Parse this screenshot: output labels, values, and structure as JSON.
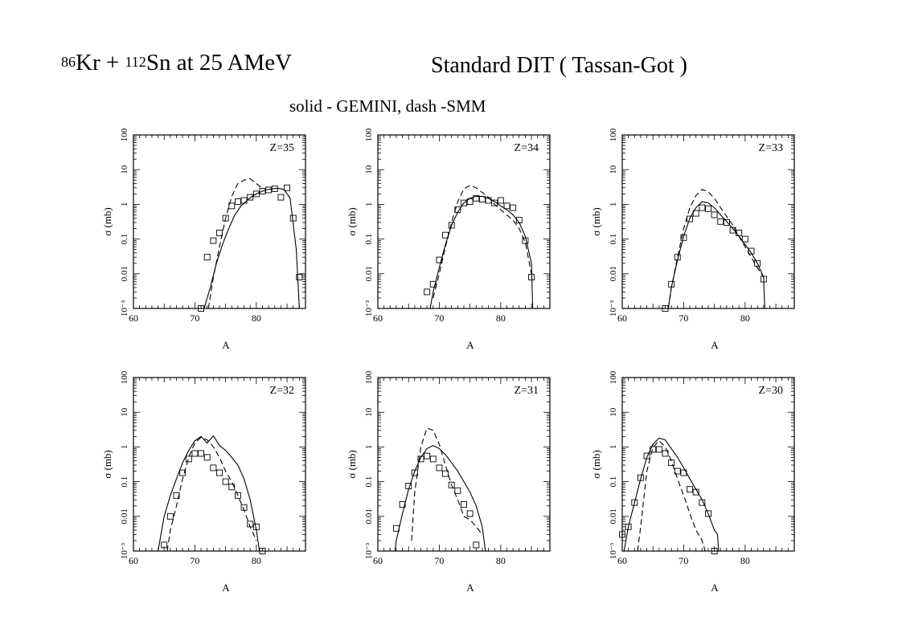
{
  "header": {
    "reaction": {
      "mass1": "86",
      "el1": "Kr",
      "plus": " + ",
      "mass2": "112",
      "el2": "Sn",
      "energy": " at 25 AMeV"
    },
    "model": "Standard DIT ( Tassan-Got )",
    "legend": "solid - GEMINI, dash -SMM"
  },
  "chart_data": [
    {
      "type": "line",
      "label": "Z=35",
      "xlabel": "A",
      "ylabel": "σ (mb)",
      "xlim": [
        60,
        88
      ],
      "ylim": [
        0.001,
        100
      ],
      "yscale": "log",
      "xticks": [
        "60",
        "70",
        "80"
      ],
      "yticks": [
        "10⁻³",
        "0.01",
        "0.1",
        "1",
        "10",
        "100"
      ],
      "series": [
        {
          "style": "solid",
          "x": [
            71.5,
            72.5,
            73.5,
            74.5,
            75.5,
            76.5,
            77.5,
            78.5,
            79.5,
            80.5,
            81.5,
            82.5,
            83.5,
            84.5,
            85.5,
            86.5,
            87
          ],
          "y": [
            0.001,
            0.004,
            0.02,
            0.07,
            0.2,
            0.5,
            0.9,
            1.3,
            1.8,
            2.2,
            2.6,
            2.8,
            2.9,
            2.7,
            1.5,
            0.05,
            0.001
          ]
        },
        {
          "style": "dashed",
          "x": [
            72.2,
            73,
            74,
            75,
            76,
            77,
            78,
            79,
            80,
            81
          ],
          "y": [
            0.001,
            0.008,
            0.06,
            0.4,
            1.7,
            4,
            5,
            5.5,
            4,
            2.8
          ]
        }
      ],
      "points": {
        "x": [
          71,
          72,
          73,
          74,
          75,
          76,
          77,
          78,
          79,
          80,
          81,
          82,
          83,
          84,
          85,
          86,
          87
        ],
        "y": [
          0.001,
          0.03,
          0.09,
          0.15,
          0.4,
          0.9,
          1.2,
          1.3,
          1.6,
          2,
          2.4,
          2.6,
          2.8,
          1.6,
          3,
          0.4,
          0.008
        ]
      }
    },
    {
      "type": "line",
      "label": "Z=34",
      "xlabel": "A",
      "ylabel": "σ (mb)",
      "xlim": [
        60,
        88
      ],
      "ylim": [
        0.001,
        100
      ],
      "yscale": "log",
      "xticks": [
        "60",
        "70",
        "80"
      ],
      "yticks": [
        "10⁻³",
        "0.01",
        "0.1",
        "1",
        "10",
        "100"
      ],
      "series": [
        {
          "style": "solid",
          "x": [
            68.5,
            69,
            70,
            71,
            72,
            73,
            74,
            75,
            76,
            77,
            78,
            79,
            80,
            81,
            82,
            83,
            84,
            85,
            85.2
          ],
          "y": [
            0.001,
            0.003,
            0.015,
            0.07,
            0.25,
            0.6,
            1.1,
            1.5,
            1.7,
            1.7,
            1.5,
            1.2,
            0.9,
            0.7,
            0.5,
            0.3,
            0.12,
            0.02,
            0.001
          ]
        },
        {
          "style": "dashed",
          "x": [
            69,
            70,
            71,
            72,
            73,
            74,
            75,
            76,
            77,
            78,
            79,
            80,
            81,
            82,
            83,
            84,
            85
          ],
          "y": [
            0.002,
            0.01,
            0.06,
            0.3,
            1.2,
            2.8,
            3.5,
            3,
            2.2,
            1.6,
            1,
            0.7,
            0.5,
            0.35,
            0.2,
            0.08,
            0.01
          ]
        }
      ],
      "points": {
        "x": [
          68,
          69,
          70,
          71,
          72,
          73,
          74,
          75,
          76,
          77,
          78,
          79,
          80,
          81,
          82,
          83,
          84,
          85
        ],
        "y": [
          0.003,
          0.005,
          0.025,
          0.13,
          0.25,
          0.7,
          1.1,
          1.2,
          1.5,
          1.4,
          1.3,
          1.1,
          1.3,
          0.9,
          0.8,
          0.35,
          0.09,
          0.008
        ]
      }
    },
    {
      "type": "line",
      "label": "Z=33",
      "xlabel": "A",
      "ylabel": "σ (mb)",
      "xlim": [
        60,
        88
      ],
      "ylim": [
        0.001,
        100
      ],
      "yscale": "log",
      "xticks": [
        "60",
        "70",
        "80"
      ],
      "yticks": [
        "10⁻³",
        "0.01",
        "0.1",
        "1",
        "10",
        "100"
      ],
      "series": [
        {
          "style": "solid",
          "x": [
            67.5,
            68,
            69,
            70,
            71,
            72,
            73,
            74,
            75,
            76,
            77,
            78,
            79,
            80,
            81,
            82,
            83,
            83.2
          ],
          "y": [
            0.001,
            0.004,
            0.025,
            0.12,
            0.4,
            0.8,
            1.2,
            1.1,
            0.8,
            0.5,
            0.32,
            0.2,
            0.12,
            0.07,
            0.04,
            0.02,
            0.008,
            0.001
          ]
        },
        {
          "style": "dashed",
          "x": [
            67.5,
            68,
            69,
            70,
            71,
            72,
            73,
            74,
            75,
            76,
            77,
            78,
            79,
            80,
            81,
            82,
            83
          ],
          "y": [
            0.001,
            0.004,
            0.03,
            0.2,
            0.8,
            1.8,
            2.7,
            2.3,
            1.5,
            0.8,
            0.45,
            0.25,
            0.12,
            0.06,
            0.03,
            0.015,
            0.008
          ]
        }
      ],
      "points": {
        "x": [
          67,
          68,
          69,
          70,
          71,
          72,
          73,
          74,
          75,
          76,
          77,
          78,
          79,
          80,
          81,
          82,
          83
        ],
        "y": [
          0.001,
          0.005,
          0.03,
          0.11,
          0.38,
          0.55,
          0.8,
          0.75,
          0.5,
          0.32,
          0.3,
          0.18,
          0.15,
          0.1,
          0.045,
          0.02,
          0.007
        ]
      }
    },
    {
      "type": "line",
      "label": "Z=32",
      "xlabel": "A",
      "ylabel": "σ (mb)",
      "xlim": [
        60,
        88
      ],
      "ylim": [
        0.001,
        100
      ],
      "yscale": "log",
      "xticks": [
        "60",
        "70",
        "80"
      ],
      "yticks": [
        "10⁻³",
        "0.01",
        "0.1",
        "1",
        "10",
        "100"
      ],
      "series": [
        {
          "style": "solid",
          "x": [
            64,
            65,
            66,
            67,
            68,
            69,
            70,
            71,
            72,
            73,
            74,
            75,
            76,
            77,
            78,
            79,
            80,
            80.5
          ],
          "y": [
            0.001,
            0.01,
            0.04,
            0.12,
            0.35,
            0.8,
            1.5,
            2,
            1.3,
            2.1,
            1.1,
            0.8,
            0.5,
            0.3,
            0.12,
            0.03,
            0.004,
            0.001
          ]
        },
        {
          "style": "dashed",
          "x": [
            65.5,
            66,
            67,
            68,
            69,
            70,
            71,
            72,
            73,
            74,
            75,
            76,
            77,
            78,
            79,
            80
          ],
          "y": [
            0.001,
            0.004,
            0.02,
            0.12,
            0.5,
            1.3,
            1.9,
            1.6,
            1,
            0.5,
            0.2,
            0.1,
            0.04,
            0.015,
            0.005,
            0.002
          ]
        }
      ],
      "points": {
        "x": [
          65,
          66,
          67,
          68,
          69,
          70,
          71,
          72,
          73,
          74,
          75,
          76,
          77,
          78,
          79,
          80,
          81
        ],
        "y": [
          0.0015,
          0.01,
          0.04,
          0.18,
          0.45,
          0.65,
          0.65,
          0.5,
          0.25,
          0.18,
          0.1,
          0.07,
          0.04,
          0.018,
          0.006,
          0.005,
          0.001
        ]
      }
    },
    {
      "type": "line",
      "label": "Z=31",
      "xlabel": "A",
      "ylabel": "σ (mb)",
      "xlim": [
        60,
        88
      ],
      "ylim": [
        0.001,
        100
      ],
      "yscale": "log",
      "xticks": [
        "60",
        "70",
        "80"
      ],
      "yticks": [
        "10⁻³",
        "0.01",
        "0.1",
        "1",
        "10",
        "100"
      ],
      "series": [
        {
          "style": "solid",
          "x": [
            62.8,
            63,
            64,
            65,
            66,
            67,
            68,
            69,
            70,
            71,
            72,
            73,
            74,
            75,
            76,
            77,
            77.5
          ],
          "y": [
            0.001,
            0.002,
            0.012,
            0.06,
            0.2,
            0.5,
            0.9,
            1.1,
            0.9,
            0.6,
            0.35,
            0.2,
            0.1,
            0.05,
            0.02,
            0.005,
            0.001
          ]
        },
        {
          "style": "dashed",
          "x": [
            65.5,
            66,
            67,
            68,
            69,
            70,
            71,
            72,
            73,
            74,
            75,
            76,
            77
          ],
          "y": [
            0.002,
            0.05,
            1,
            3.5,
            3,
            1.2,
            0.3,
            0.08,
            0.03,
            0.01,
            0.008,
            0.005,
            0.003
          ]
        }
      ],
      "points": {
        "x": [
          63,
          64,
          65,
          66,
          67,
          68,
          69,
          70,
          71,
          72,
          73,
          74,
          75,
          76
        ],
        "y": [
          0.0045,
          0.022,
          0.075,
          0.18,
          0.45,
          0.55,
          0.45,
          0.25,
          0.17,
          0.08,
          0.055,
          0.022,
          0.012,
          0.0015
        ]
      }
    },
    {
      "type": "line",
      "label": "Z=30",
      "xlabel": "A",
      "ylabel": "σ (mb)",
      "xlim": [
        60,
        88
      ],
      "ylim": [
        0.001,
        100
      ],
      "yscale": "log",
      "xticks": [
        "60",
        "70",
        "80"
      ],
      "yticks": [
        "10⁻³",
        "0.01",
        "0.1",
        "1",
        "10",
        "100"
      ],
      "series": [
        {
          "style": "solid",
          "x": [
            60.3,
            61,
            62,
            63,
            64,
            65,
            66,
            67,
            68,
            69,
            70,
            71,
            72,
            73,
            74,
            75,
            75.5,
            75.7
          ],
          "y": [
            0.001,
            0.005,
            0.025,
            0.12,
            0.5,
            1.2,
            1.8,
            1.6,
            0.9,
            0.5,
            0.25,
            0.12,
            0.06,
            0.03,
            0.012,
            0.004,
            0.003,
            0.001
          ]
        },
        {
          "style": "dashed",
          "x": [
            62.5,
            63,
            64,
            65,
            66,
            67,
            68,
            69,
            70,
            71,
            72,
            73,
            73.5
          ],
          "y": [
            0.001,
            0.005,
            0.2,
            1,
            1.5,
            1,
            0.4,
            0.12,
            0.04,
            0.012,
            0.004,
            0.002,
            0.001
          ]
        }
      ],
      "points": {
        "x": [
          60,
          61,
          62,
          63,
          64,
          65,
          66,
          67,
          68,
          69,
          70,
          71,
          72,
          73,
          74,
          75
        ],
        "y": [
          0.003,
          0.005,
          0.025,
          0.13,
          0.55,
          0.85,
          0.85,
          0.65,
          0.35,
          0.2,
          0.18,
          0.06,
          0.05,
          0.025,
          0.012,
          0.001
        ]
      }
    }
  ]
}
